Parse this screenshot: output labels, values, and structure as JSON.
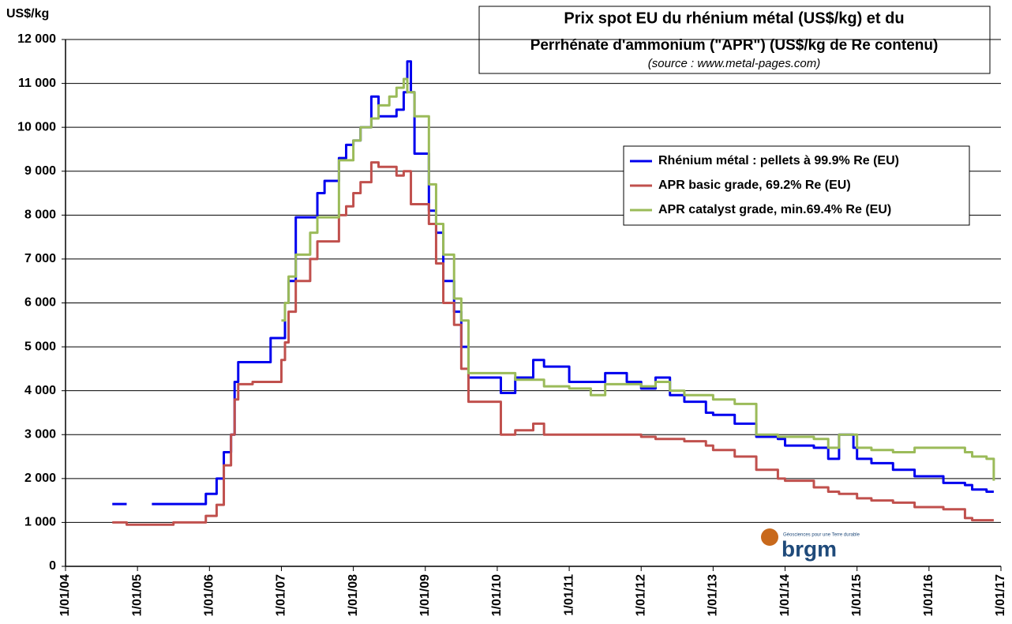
{
  "chart_data": {
    "type": "line",
    "step": "post",
    "title": [
      "Prix spot EU du rhénium métal (US$/kg)  et du",
      "Perrhénate d'ammonium (\"APR\") (US$/kg de Re contenu)"
    ],
    "subtitle": "(source : www.metal-pages.com)",
    "y_label": "US$/kg",
    "logo": {
      "text": "brgm",
      "tagline": "Géosciences pour une Terre durable"
    },
    "legend": "upper right",
    "grid": true,
    "xlim": [
      2004,
      2017
    ],
    "xticks": [
      {
        "value": 2004,
        "label": "1/01/04"
      },
      {
        "value": 2005,
        "label": "1/01/05"
      },
      {
        "value": 2006,
        "label": "1/01/06"
      },
      {
        "value": 2007,
        "label": "1/01/07"
      },
      {
        "value": 2008,
        "label": "1/01/08"
      },
      {
        "value": 2009,
        "label": "1/01/09"
      },
      {
        "value": 2010,
        "label": "1/01/10"
      },
      {
        "value": 2011,
        "label": "1/01/11"
      },
      {
        "value": 2012,
        "label": "1/01/12"
      },
      {
        "value": 2013,
        "label": "1/01/13"
      },
      {
        "value": 2014,
        "label": "1/01/14"
      },
      {
        "value": 2015,
        "label": "1/01/15"
      },
      {
        "value": 2016,
        "label": "1/01/16"
      },
      {
        "value": 2017,
        "label": "1/01/17"
      }
    ],
    "ylim": [
      0,
      12000
    ],
    "yticks": [
      0,
      {
        "value": 1000,
        "label": "1 000"
      },
      {
        "value": 2000,
        "label": "2 000"
      },
      {
        "value": 3000,
        "label": "3 000"
      },
      {
        "value": 4000,
        "label": "4 000"
      },
      {
        "value": 5000,
        "label": "5 000"
      },
      {
        "value": 6000,
        "label": "6 000"
      },
      {
        "value": 7000,
        "label": "7 000"
      },
      {
        "value": 8000,
        "label": "8 000"
      },
      {
        "value": 9000,
        "label": "9 000"
      },
      {
        "value": 10000,
        "label": "10 000"
      },
      {
        "value": 11000,
        "label": "11 000"
      },
      {
        "value": 12000,
        "label": "12 000"
      }
    ],
    "x": [
      2004.65,
      2004.85,
      2005.1,
      2005.2,
      2005.5,
      2005.9,
      2005.95,
      2006.1,
      2006.2,
      2006.3,
      2006.35,
      2006.4,
      2006.6,
      2006.85,
      2007.0,
      2007.05,
      2007.1,
      2007.2,
      2007.4,
      2007.5,
      2007.6,
      2007.8,
      2007.9,
      2008.0,
      2008.1,
      2008.25,
      2008.35,
      2008.5,
      2008.6,
      2008.7,
      2008.75,
      2008.8,
      2008.85,
      2009.05,
      2009.15,
      2009.25,
      2009.4,
      2009.5,
      2009.6,
      2010.0,
      2010.05,
      2010.25,
      2010.5,
      2010.65,
      2011.0,
      2011.3,
      2011.5,
      2011.8,
      2012.0,
      2012.2,
      2012.4,
      2012.6,
      2012.9,
      2013.0,
      2013.3,
      2013.6,
      2013.9,
      2014.0,
      2014.4,
      2014.6,
      2014.75,
      2014.95,
      2015.0,
      2015.2,
      2015.5,
      2015.8,
      2016.2,
      2016.5,
      2016.6,
      2016.8,
      2016.9
    ],
    "series": [
      {
        "name": "Rhénium métal : pellets à 99.9% Re (EU)",
        "color": "#0000ee",
        "values": [
          1420,
          1420,
          null,
          1420,
          1420,
          1420,
          1650,
          2000,
          2600,
          3000,
          4200,
          4650,
          4650,
          5200,
          5200,
          6000,
          6500,
          7950,
          7950,
          8500,
          8780,
          9300,
          9600,
          9700,
          10000,
          10700,
          10250,
          10250,
          10400,
          10800,
          11500,
          10800,
          9400,
          8100,
          7600,
          6500,
          5800,
          5000,
          4300,
          4300,
          3950,
          4300,
          4700,
          4550,
          4200,
          4200,
          4400,
          4200,
          4050,
          4300,
          3900,
          3750,
          3500,
          3450,
          3250,
          2950,
          2900,
          2750,
          2700,
          2450,
          3000,
          2700,
          2450,
          2350,
          2200,
          2050,
          1900,
          1850,
          1750,
          1700,
          1700
        ]
      },
      {
        "name": "APR basic grade, 69.2% Re (EU)",
        "color": "#c0504d",
        "values": [
          1000,
          950,
          950,
          950,
          1000,
          1000,
          1150,
          1400,
          2300,
          3000,
          3800,
          4150,
          4200,
          4200,
          4700,
          5100,
          5800,
          6500,
          7000,
          7400,
          7400,
          8000,
          8200,
          8500,
          8750,
          9200,
          9100,
          9100,
          8900,
          9000,
          9000,
          8250,
          8250,
          7800,
          6900,
          6000,
          5500,
          4500,
          3750,
          3750,
          3000,
          3100,
          3250,
          3000,
          3000,
          3000,
          3000,
          3000,
          2950,
          2900,
          2900,
          2850,
          2750,
          2650,
          2500,
          2200,
          2000,
          1950,
          1800,
          1700,
          1650,
          1650,
          1550,
          1500,
          1450,
          1350,
          1300,
          1100,
          1050,
          1050,
          1050
        ]
      },
      {
        "name": "APR catalyst grade, min.69.4% Re (EU)",
        "color": "#9bbb59",
        "values": [
          null,
          null,
          null,
          null,
          null,
          null,
          null,
          null,
          null,
          null,
          null,
          null,
          null,
          null,
          5600,
          6000,
          6600,
          7100,
          7600,
          7950,
          7950,
          9250,
          9250,
          9700,
          10000,
          10200,
          10500,
          10700,
          10900,
          11100,
          10800,
          10800,
          10250,
          8700,
          7800,
          7100,
          6100,
          5600,
          4400,
          4400,
          4400,
          4250,
          4250,
          4100,
          4050,
          3900,
          4150,
          4150,
          4100,
          4200,
          4000,
          3900,
          3900,
          3800,
          3700,
          3000,
          2950,
          2950,
          2900,
          2700,
          3000,
          3000,
          2700,
          2650,
          2600,
          2700,
          2700,
          2600,
          2500,
          2450,
          1950
        ]
      }
    ]
  }
}
